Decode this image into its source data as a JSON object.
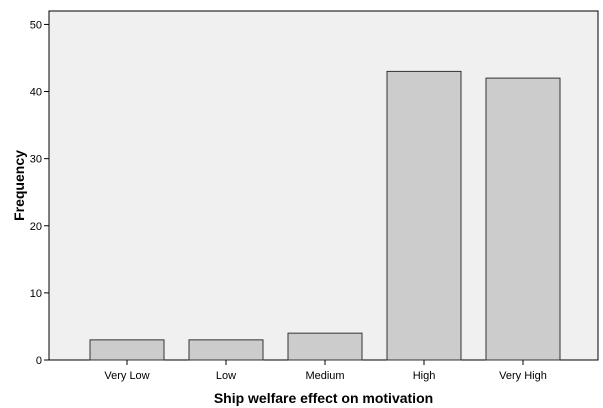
{
  "chart_data": {
    "type": "bar",
    "title": "",
    "xlabel": "Ship welfare effect on motivation",
    "ylabel": "Frequency",
    "categories": [
      "Very Low",
      "Low",
      "Medium",
      "High",
      "Very High"
    ],
    "values": [
      3,
      3,
      4,
      43,
      42
    ],
    "ylim": [
      0,
      52
    ],
    "yticks": [
      0,
      10,
      20,
      30,
      40,
      50
    ],
    "grid": false,
    "legend": "none",
    "colors": {
      "plot_background": "#f0f0f0",
      "bar_fill": "#cccccc",
      "bar_stroke": "#333333",
      "axis": "#000000"
    }
  }
}
